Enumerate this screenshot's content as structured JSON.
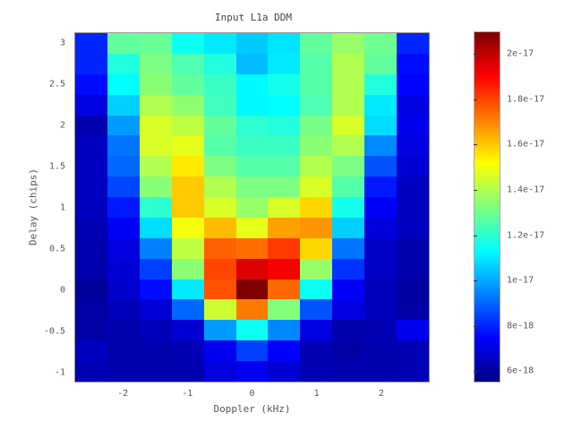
{
  "chart_data": {
    "type": "heatmap",
    "title": "Input L1a DDM",
    "xlabel": "Doppler (kHz)",
    "ylabel": "Delay (chips)",
    "x_ticks": [
      "-2",
      "-1",
      "0",
      "1",
      "2"
    ],
    "y_ticks": [
      "3",
      "2.5",
      "2",
      "1.5",
      "1",
      "0.5",
      "0",
      "-0.5",
      "-1"
    ],
    "xlim": [
      -2.75,
      2.75
    ],
    "ylim": [
      -1.125,
      3.125
    ],
    "x_centers": [
      -2.5,
      -2,
      -1.5,
      -1,
      -0.5,
      0,
      0.5,
      1,
      1.5,
      2,
      2.5
    ],
    "y_centers": [
      3,
      2.75,
      2.5,
      2.25,
      2,
      1.75,
      1.5,
      1.25,
      1,
      0.75,
      0.5,
      0.25,
      0,
      -0.25,
      -0.5,
      -0.75,
      -1
    ],
    "colorbar": {
      "colormap": "jet",
      "range": [
        5.5e-18,
        2.1e-17
      ],
      "tick_labels": [
        "2e-17",
        "1.8e-17",
        "1.6e-17",
        "1.4e-17",
        "1.2e-17",
        "1e-17",
        "8e-18",
        "6e-18"
      ],
      "tick_values": [
        2e-17,
        1.8e-17,
        1.6e-17,
        1.4e-17,
        1.2e-17,
        1e-17,
        8e-18,
        6e-18
      ]
    },
    "values_e18": [
      [
        8.0,
        12.8,
        12.9,
        11.5,
        11.0,
        10.5,
        10.9,
        12.8,
        13.6,
        13.0,
        8.0
      ],
      [
        8.0,
        11.8,
        13.2,
        12.5,
        11.8,
        10.3,
        11.0,
        12.6,
        14.0,
        12.8,
        7.6
      ],
      [
        7.6,
        11.3,
        13.4,
        12.8,
        12.2,
        11.2,
        11.6,
        12.6,
        14.0,
        11.8,
        7.5
      ],
      [
        7.0,
        10.6,
        14.0,
        13.5,
        12.3,
        11.2,
        11.3,
        12.5,
        14.0,
        11.0,
        7.0
      ],
      [
        6.2,
        9.8,
        14.6,
        14.2,
        12.8,
        12.0,
        11.8,
        13.1,
        14.6,
        10.8,
        7.2
      ],
      [
        6.5,
        9.2,
        14.6,
        14.8,
        12.6,
        12.2,
        12.2,
        13.4,
        14.0,
        9.5,
        7.0
      ],
      [
        6.5,
        9.0,
        14.0,
        15.5,
        13.2,
        12.6,
        12.6,
        14.0,
        13.2,
        8.7,
        6.8
      ],
      [
        6.5,
        8.5,
        13.4,
        16.0,
        14.0,
        13.2,
        13.2,
        14.6,
        12.6,
        7.8,
        6.5
      ],
      [
        6.5,
        7.8,
        12.0,
        16.0,
        14.6,
        13.6,
        14.6,
        15.8,
        11.6,
        7.3,
        6.5
      ],
      [
        6.3,
        7.3,
        10.8,
        15.0,
        16.2,
        14.8,
        16.6,
        16.8,
        10.6,
        6.9,
        6.5
      ],
      [
        6.2,
        7.0,
        9.4,
        14.2,
        17.6,
        17.4,
        18.2,
        15.8,
        9.2,
        6.6,
        6.2
      ],
      [
        6.2,
        6.8,
        8.4,
        13.4,
        18.0,
        19.6,
        19.2,
        13.6,
        8.2,
        6.6,
        6.2
      ],
      [
        5.9,
        6.7,
        7.6,
        11.0,
        17.8,
        21.0,
        17.5,
        11.5,
        7.3,
        6.4,
        6.0
      ],
      [
        6.1,
        6.4,
        6.8,
        9.0,
        14.4,
        17.2,
        13.3,
        8.7,
        7.0,
        6.4,
        6.1
      ],
      [
        6.1,
        6.2,
        6.4,
        6.8,
        9.8,
        11.5,
        9.5,
        7.0,
        6.2,
        6.3,
        7.2
      ],
      [
        6.5,
        6.2,
        6.2,
        6.3,
        7.2,
        8.4,
        7.4,
        6.3,
        6.1,
        6.2,
        6.3
      ],
      [
        6.3,
        6.2,
        6.2,
        6.2,
        6.9,
        7.2,
        6.8,
        6.3,
        6.2,
        6.2,
        6.3
      ]
    ],
    "grid": false,
    "legend_position": "colorbar-right"
  }
}
